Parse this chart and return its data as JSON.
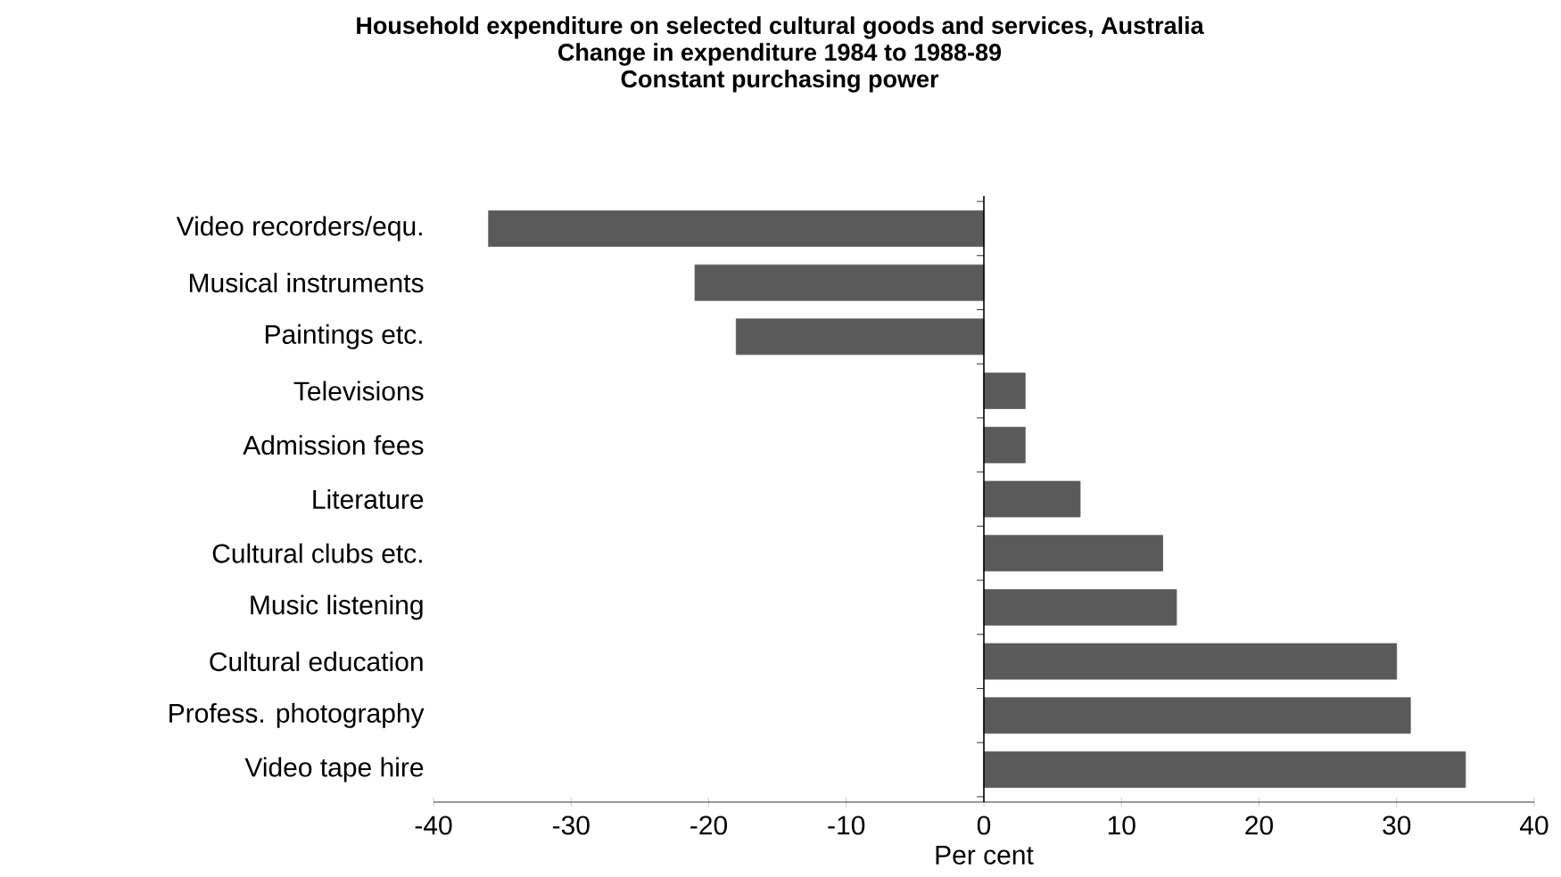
{
  "chart_data": {
    "type": "bar",
    "orientation": "horizontal",
    "title": "Household expenditure on selected cultural goods and services, Australia",
    "subtitle": "Change in expenditure 1984 to 1988-89",
    "annotations": [
      "Constant purchasing power"
    ],
    "xlabel": "Per cent",
    "categories": [
      "Video recorders/equ.",
      "Musical instruments",
      "Paintings etc.",
      "Televisions",
      "Admission fees",
      "Literature",
      "Cultural clubs etc.",
      "Music listening",
      "Cultural education",
      "Profess. photography",
      "Video tape hire"
    ],
    "values": [
      -36,
      -21,
      -18,
      3,
      3,
      7,
      13,
      14,
      30,
      31,
      35
    ],
    "color": "#5a5a5a",
    "xlim": [
      -40,
      40
    ],
    "xticks": [
      -40,
      -30,
      -20,
      -10,
      0,
      10,
      20,
      30,
      40
    ]
  }
}
